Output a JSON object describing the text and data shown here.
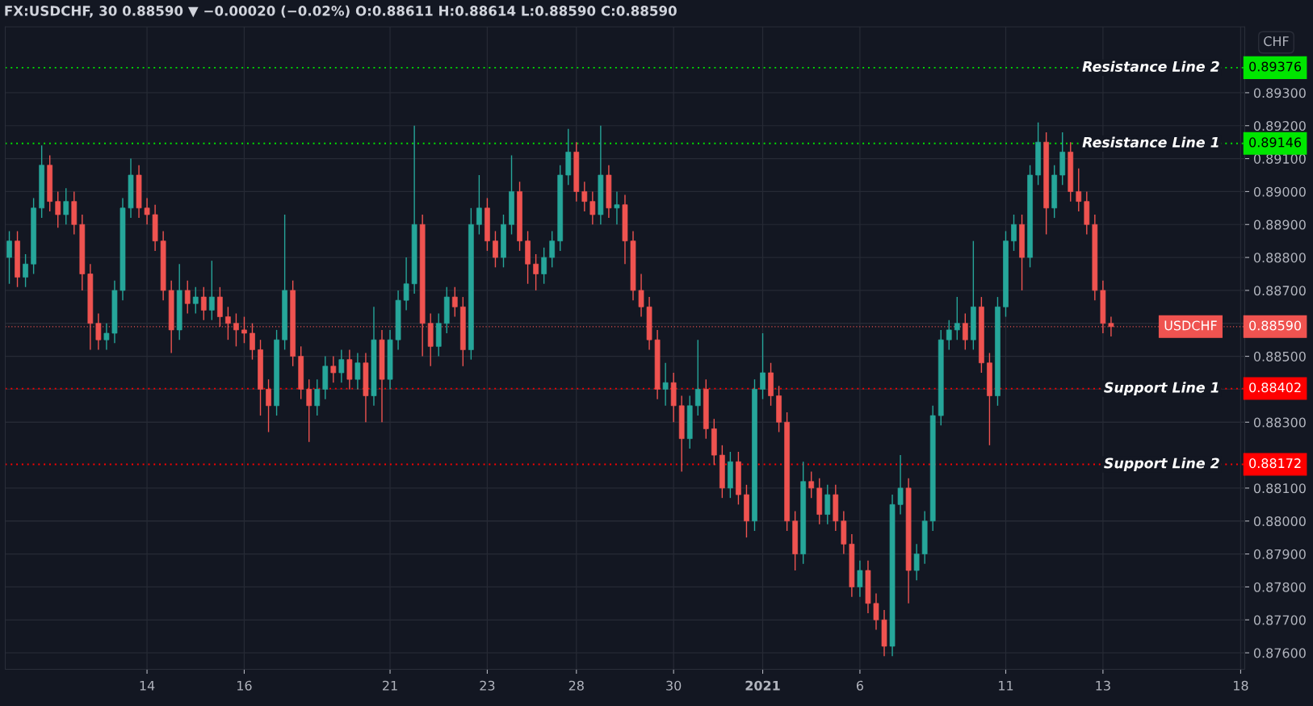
{
  "chart_data": {
    "type": "candlestick",
    "title": "FX:USDCHF, 30 0.88590 ▼ −0.00020 (−0.02%) O:0.88611 H:0.88614 L:0.88590 C:0.88590",
    "ylabel": "CHF",
    "categories": [
      null,
      null,
      null,
      null,
      null,
      null,
      null,
      null,
      null,
      null,
      null,
      null,
      null,
      null,
      null,
      null,
      null,
      "14",
      null,
      null,
      null,
      null,
      null,
      null,
      null,
      null,
      null,
      null,
      null,
      "16",
      null,
      null,
      null,
      null,
      null,
      null,
      null,
      null,
      null,
      null,
      null,
      null,
      null,
      null,
      null,
      null,
      null,
      "21",
      null,
      null,
      null,
      null,
      null,
      null,
      null,
      null,
      null,
      null,
      null,
      "23",
      null,
      null,
      null,
      null,
      null,
      null,
      null,
      null,
      null,
      null,
      "28",
      null,
      null,
      null,
      null,
      null,
      null,
      null,
      null,
      null,
      null,
      null,
      "30",
      null,
      null,
      null,
      null,
      null,
      null,
      null,
      null,
      null,
      null,
      "2021",
      null,
      null,
      null,
      null,
      null,
      null,
      null,
      null,
      null,
      null,
      null,
      "6",
      null,
      null,
      null,
      null,
      null,
      null,
      null,
      null,
      null,
      null,
      null,
      null,
      null,
      null,
      null,
      null,
      null,
      "11",
      null,
      null,
      null,
      null,
      null,
      null,
      null,
      null,
      null,
      null,
      null,
      "13",
      null,
      null,
      null,
      null,
      null,
      null,
      null,
      null,
      null,
      null,
      null,
      null,
      null,
      null,
      null,
      null,
      "18"
    ],
    "ohlc": [
      [
        0.888,
        0.8888,
        0.8872,
        0.8885
      ],
      [
        0.8885,
        0.8888,
        0.8871,
        0.8874
      ],
      [
        0.8874,
        0.8881,
        0.8871,
        0.8878
      ],
      [
        0.8878,
        0.8898,
        0.8875,
        0.8895
      ],
      [
        0.8895,
        0.8914,
        0.8892,
        0.8908
      ],
      [
        0.8908,
        0.8911,
        0.8894,
        0.8897
      ],
      [
        0.8897,
        0.89,
        0.8889,
        0.8893
      ],
      [
        0.8893,
        0.8901,
        0.889,
        0.8897
      ],
      [
        0.8897,
        0.89,
        0.8887,
        0.889
      ],
      [
        0.889,
        0.8893,
        0.887,
        0.8875
      ],
      [
        0.8875,
        0.8878,
        0.8852,
        0.886
      ],
      [
        0.886,
        0.8863,
        0.8852,
        0.8855
      ],
      [
        0.8855,
        0.886,
        0.8852,
        0.8857
      ],
      [
        0.8857,
        0.8873,
        0.8854,
        0.887
      ],
      [
        0.887,
        0.8898,
        0.8867,
        0.8895
      ],
      [
        0.8895,
        0.891,
        0.8892,
        0.8905
      ],
      [
        0.8905,
        0.8908,
        0.8892,
        0.8895
      ],
      [
        0.8895,
        0.8898,
        0.889,
        0.8893
      ],
      [
        0.8893,
        0.8896,
        0.8882,
        0.8885
      ],
      [
        0.8885,
        0.8888,
        0.8867,
        0.887
      ],
      [
        0.887,
        0.8873,
        0.8851,
        0.8858
      ],
      [
        0.8858,
        0.8878,
        0.8855,
        0.887
      ],
      [
        0.887,
        0.8873,
        0.8863,
        0.8866
      ],
      [
        0.8866,
        0.8871,
        0.8863,
        0.8868
      ],
      [
        0.8868,
        0.8871,
        0.8861,
        0.8864
      ],
      [
        0.8864,
        0.8879,
        0.8861,
        0.8868
      ],
      [
        0.8868,
        0.8871,
        0.8859,
        0.8862
      ],
      [
        0.8862,
        0.8865,
        0.8855,
        0.886
      ],
      [
        0.886,
        0.8863,
        0.8853,
        0.8858
      ],
      [
        0.8858,
        0.8862,
        0.8854,
        0.8857
      ],
      [
        0.8857,
        0.886,
        0.8849,
        0.8852
      ],
      [
        0.8852,
        0.8855,
        0.8832,
        0.884
      ],
      [
        0.884,
        0.8843,
        0.8827,
        0.8835
      ],
      [
        0.8835,
        0.8858,
        0.8832,
        0.8855
      ],
      [
        0.8855,
        0.8893,
        0.8852,
        0.887
      ],
      [
        0.887,
        0.8873,
        0.8847,
        0.885
      ],
      [
        0.885,
        0.8853,
        0.8837,
        0.884
      ],
      [
        0.884,
        0.8843,
        0.8824,
        0.8835
      ],
      [
        0.8835,
        0.8843,
        0.8832,
        0.884
      ],
      [
        0.884,
        0.885,
        0.8837,
        0.8847
      ],
      [
        0.8847,
        0.885,
        0.8842,
        0.8845
      ],
      [
        0.8845,
        0.8852,
        0.8842,
        0.8849
      ],
      [
        0.8849,
        0.8852,
        0.884,
        0.8843
      ],
      [
        0.8843,
        0.8851,
        0.884,
        0.8848
      ],
      [
        0.8848,
        0.8851,
        0.883,
        0.8838
      ],
      [
        0.8838,
        0.8865,
        0.8835,
        0.8855
      ],
      [
        0.8855,
        0.8858,
        0.883,
        0.8843
      ],
      [
        0.8843,
        0.8858,
        0.884,
        0.8855
      ],
      [
        0.8855,
        0.887,
        0.8852,
        0.8867
      ],
      [
        0.8867,
        0.888,
        0.8864,
        0.8872
      ],
      [
        0.8872,
        0.892,
        0.8869,
        0.889
      ],
      [
        0.889,
        0.8893,
        0.885,
        0.886
      ],
      [
        0.886,
        0.8863,
        0.8847,
        0.8853
      ],
      [
        0.8853,
        0.8863,
        0.885,
        0.886
      ],
      [
        0.886,
        0.8871,
        0.8857,
        0.8868
      ],
      [
        0.8868,
        0.8871,
        0.8862,
        0.8865
      ],
      [
        0.8865,
        0.8868,
        0.8847,
        0.8852
      ],
      [
        0.8852,
        0.8895,
        0.8849,
        0.889
      ],
      [
        0.889,
        0.8905,
        0.8887,
        0.8895
      ],
      [
        0.8895,
        0.8898,
        0.8882,
        0.8885
      ],
      [
        0.8885,
        0.8888,
        0.8877,
        0.888
      ],
      [
        0.888,
        0.8893,
        0.8877,
        0.889
      ],
      [
        0.889,
        0.8911,
        0.8887,
        0.89
      ],
      [
        0.89,
        0.8903,
        0.8882,
        0.8885
      ],
      [
        0.8885,
        0.8888,
        0.8872,
        0.8878
      ],
      [
        0.8878,
        0.8881,
        0.887,
        0.8875
      ],
      [
        0.8875,
        0.8883,
        0.8872,
        0.888
      ],
      [
        0.888,
        0.8888,
        0.8877,
        0.8885
      ],
      [
        0.8885,
        0.8908,
        0.8882,
        0.8905
      ],
      [
        0.8905,
        0.8919,
        0.8902,
        0.8912
      ],
      [
        0.8912,
        0.8915,
        0.8897,
        0.89
      ],
      [
        0.89,
        0.8903,
        0.8894,
        0.8897
      ],
      [
        0.8897,
        0.89,
        0.889,
        0.8893
      ],
      [
        0.8893,
        0.892,
        0.889,
        0.8905
      ],
      [
        0.8905,
        0.8908,
        0.8892,
        0.8895
      ],
      [
        0.8895,
        0.89,
        0.889,
        0.8896
      ],
      [
        0.8896,
        0.8899,
        0.8878,
        0.8885
      ],
      [
        0.8885,
        0.8888,
        0.8867,
        0.887
      ],
      [
        0.887,
        0.8875,
        0.8862,
        0.8865
      ],
      [
        0.8865,
        0.8868,
        0.8852,
        0.8855
      ],
      [
        0.8855,
        0.8858,
        0.8837,
        0.884
      ],
      [
        0.884,
        0.8848,
        0.8835,
        0.8842
      ],
      [
        0.8842,
        0.8845,
        0.883,
        0.8835
      ],
      [
        0.8835,
        0.8838,
        0.8815,
        0.8825
      ],
      [
        0.8825,
        0.8838,
        0.8822,
        0.8835
      ],
      [
        0.8835,
        0.8855,
        0.8832,
        0.884
      ],
      [
        0.884,
        0.8843,
        0.8825,
        0.8828
      ],
      [
        0.8828,
        0.8831,
        0.8817,
        0.882
      ],
      [
        0.882,
        0.8823,
        0.8807,
        0.881
      ],
      [
        0.881,
        0.8821,
        0.8807,
        0.8818
      ],
      [
        0.8818,
        0.8821,
        0.8805,
        0.8808
      ],
      [
        0.8808,
        0.8811,
        0.8795,
        0.88
      ],
      [
        0.88,
        0.8843,
        0.8797,
        0.884
      ],
      [
        0.884,
        0.8857,
        0.8837,
        0.8845
      ],
      [
        0.8845,
        0.8848,
        0.8835,
        0.8838
      ],
      [
        0.8838,
        0.8841,
        0.8827,
        0.883
      ],
      [
        0.883,
        0.8833,
        0.8797,
        0.88
      ],
      [
        0.88,
        0.8803,
        0.8785,
        0.879
      ],
      [
        0.879,
        0.8818,
        0.8787,
        0.8812
      ],
      [
        0.8812,
        0.8815,
        0.8807,
        0.881
      ],
      [
        0.881,
        0.8813,
        0.8799,
        0.8802
      ],
      [
        0.8802,
        0.8811,
        0.8799,
        0.8808
      ],
      [
        0.8808,
        0.8811,
        0.8797,
        0.88
      ],
      [
        0.88,
        0.8803,
        0.879,
        0.8793
      ],
      [
        0.8793,
        0.8796,
        0.8777,
        0.878
      ],
      [
        0.878,
        0.8788,
        0.8777,
        0.8785
      ],
      [
        0.8785,
        0.8788,
        0.8772,
        0.8775
      ],
      [
        0.8775,
        0.8778,
        0.8767,
        0.877
      ],
      [
        0.877,
        0.8773,
        0.8759,
        0.8762
      ],
      [
        0.8762,
        0.8808,
        0.8759,
        0.8805
      ],
      [
        0.8805,
        0.882,
        0.8802,
        0.881
      ],
      [
        0.881,
        0.8813,
        0.8775,
        0.8785
      ],
      [
        0.8785,
        0.8793,
        0.8782,
        0.879
      ],
      [
        0.879,
        0.8803,
        0.8787,
        0.88
      ],
      [
        0.88,
        0.8835,
        0.8797,
        0.8832
      ],
      [
        0.8832,
        0.8858,
        0.8829,
        0.8855
      ],
      [
        0.8855,
        0.8861,
        0.8852,
        0.8858
      ],
      [
        0.8858,
        0.8868,
        0.8855,
        0.886
      ],
      [
        0.886,
        0.8863,
        0.8852,
        0.8855
      ],
      [
        0.8855,
        0.8885,
        0.8852,
        0.8865
      ],
      [
        0.8865,
        0.8868,
        0.8845,
        0.8848
      ],
      [
        0.8848,
        0.8851,
        0.8823,
        0.8838
      ],
      [
        0.8838,
        0.8868,
        0.8835,
        0.8865
      ],
      [
        0.8865,
        0.8888,
        0.8862,
        0.8885
      ],
      [
        0.8885,
        0.8893,
        0.8882,
        0.889
      ],
      [
        0.889,
        0.8893,
        0.887,
        0.888
      ],
      [
        0.888,
        0.8908,
        0.8877,
        0.8905
      ],
      [
        0.8905,
        0.8921,
        0.8902,
        0.8915
      ],
      [
        0.8915,
        0.8918,
        0.8887,
        0.8895
      ],
      [
        0.8895,
        0.8908,
        0.8892,
        0.8905
      ],
      [
        0.8905,
        0.8918,
        0.8902,
        0.8912
      ],
      [
        0.8912,
        0.8915,
        0.8897,
        0.89
      ],
      [
        0.89,
        0.8907,
        0.8894,
        0.8897
      ],
      [
        0.8897,
        0.89,
        0.8887,
        0.889
      ],
      [
        0.889,
        0.8893,
        0.8867,
        0.887
      ],
      [
        0.887,
        0.8873,
        0.8857,
        0.886
      ],
      [
        0.886,
        0.8862,
        0.8856,
        0.8859
      ],
      null,
      null,
      null,
      null,
      null,
      null,
      null,
      null,
      null,
      null,
      null,
      null,
      null,
      null,
      null,
      null
    ],
    "colors": [
      "#26a69a",
      "#ef5350",
      "#26a69a",
      "#26a69a",
      "#26a69a",
      "#ef5350",
      "#ef5350",
      "#26a69a",
      "#ef5350",
      "#ef5350",
      "#ef5350",
      "#ef5350",
      "#26a69a",
      "#26a69a",
      "#26a69a",
      "#26a69a",
      "#ef5350",
      "#ef5350",
      "#ef5350",
      "#ef5350",
      "#ef5350",
      "#26a69a",
      "#ef5350",
      "#26a69a",
      "#ef5350",
      "#26a69a",
      "#ef5350",
      "#ef5350",
      "#ef5350",
      "#ef5350",
      "#ef5350",
      "#ef5350",
      "#ef5350",
      "#26a69a",
      "#26a69a",
      "#ef5350",
      "#ef5350",
      "#ef5350",
      "#26a69a",
      "#26a69a",
      "#ef5350",
      "#26a69a",
      "#ef5350",
      "#26a69a",
      "#ef5350",
      "#26a69a",
      "#ef5350",
      "#26a69a",
      "#26a69a",
      "#26a69a",
      "#26a69a",
      "#ef5350",
      "#ef5350",
      "#26a69a",
      "#26a69a",
      "#ef5350",
      "#ef5350",
      "#26a69a",
      "#26a69a",
      "#ef5350",
      "#ef5350",
      "#26a69a",
      "#26a69a",
      "#ef5350",
      "#ef5350",
      "#ef5350",
      "#26a69a",
      "#26a69a",
      "#26a69a",
      "#26a69a",
      "#ef5350",
      "#ef5350",
      "#ef5350",
      "#26a69a",
      "#ef5350",
      "#26a69a",
      "#ef5350",
      "#ef5350",
      "#ef5350",
      "#ef5350",
      "#ef5350",
      "#26a69a",
      "#ef5350",
      "#ef5350",
      "#26a69a",
      "#26a69a",
      "#ef5350",
      "#ef5350",
      "#ef5350",
      "#26a69a",
      "#ef5350",
      "#ef5350",
      "#26a69a",
      "#26a69a",
      "#ef5350",
      "#ef5350",
      "#ef5350",
      "#ef5350",
      "#26a69a",
      "#ef5350",
      "#ef5350",
      "#26a69a",
      "#ef5350",
      "#ef5350",
      "#ef5350",
      "#26a69a",
      "#ef5350",
      "#ef5350",
      "#ef5350",
      "#26a69a",
      "#26a69a",
      "#ef5350",
      "#26a69a",
      "#26a69a",
      "#26a69a",
      "#26a69a",
      "#26a69a",
      "#26a69a",
      "#ef5350",
      "#26a69a",
      "#ef5350",
      "#ef5350",
      "#26a69a",
      "#26a69a",
      "#26a69a",
      "#ef5350",
      "#26a69a",
      "#26a69a",
      "#ef5350",
      "#26a69a",
      "#26a69a",
      "#ef5350",
      "#ef5350",
      "#ef5350",
      "#ef5350",
      "#ef5350",
      "#ef5350",
      null,
      null,
      null,
      null,
      null,
      null,
      null,
      null,
      null,
      null,
      null,
      null,
      null,
      null,
      null,
      null
    ],
    "ylim": [
      0.8755,
      0.895
    ],
    "yticks": [
      {
        "value": 0.876,
        "label": "0.87600"
      },
      {
        "value": 0.877,
        "label": "0.87700"
      },
      {
        "value": 0.878,
        "label": "0.87800"
      },
      {
        "value": 0.879,
        "label": "0.87900"
      },
      {
        "value": 0.88,
        "label": "0.88000"
      },
      {
        "value": 0.881,
        "label": "0.88100"
      },
      {
        "value": 0.883,
        "label": "0.88300"
      },
      {
        "value": 0.884,
        "label": null
      },
      {
        "value": 0.885,
        "label": "0.88500"
      },
      {
        "value": 0.886,
        "label": null
      },
      {
        "value": 0.887,
        "label": "0.88700"
      },
      {
        "value": 0.888,
        "label": "0.88800"
      },
      {
        "value": 0.889,
        "label": "0.88900"
      },
      {
        "value": 0.89,
        "label": "0.89000"
      },
      {
        "value": 0.891,
        "label": "0.89100"
      },
      {
        "value": 0.892,
        "label": "0.89200"
      },
      {
        "value": 0.893,
        "label": "0.89300"
      }
    ],
    "ref_lines": [
      {
        "axis": "y",
        "value": 0.89376,
        "label": "Resistance Line 2",
        "color": "#00e600",
        "line_style": "dotted"
      },
      {
        "axis": "y",
        "value": 0.89146,
        "label": "Resistance Line 1",
        "color": "#00e600",
        "line_style": "dotted"
      },
      {
        "axis": "y",
        "value": 0.8859,
        "label": "USDCHF",
        "color": "#ef5350",
        "line_style": "dotted"
      },
      {
        "axis": "y",
        "value": 0.88402,
        "label": "Support Line 1",
        "color": "#ff0000",
        "line_style": "dotted"
      },
      {
        "axis": "y",
        "value": 0.88172,
        "label": "Support Line 2",
        "color": "#ff0000",
        "line_style": "dotted"
      }
    ],
    "annotations": [
      "0.89376",
      "0.89146",
      "0.88590",
      "0.88402",
      "0.88172"
    ],
    "grid": true
  }
}
